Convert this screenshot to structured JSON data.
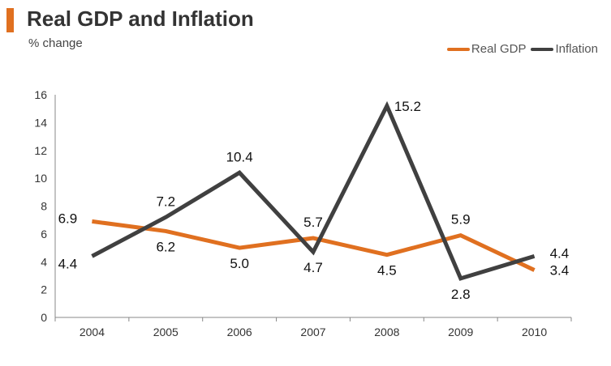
{
  "chart_data": {
    "type": "line",
    "title": "Real GDP and Inflation",
    "subtitle": "% change",
    "categories": [
      "2004",
      "2005",
      "2006",
      "2007",
      "2008",
      "2009",
      "2010"
    ],
    "ylim": [
      0,
      16
    ],
    "yticks": [
      0,
      2,
      4,
      6,
      8,
      10,
      12,
      14,
      16
    ],
    "xlabel": "",
    "ylabel": "",
    "grid": false,
    "legend_position": "top-right",
    "series": [
      {
        "name": "Real GDP",
        "color": "#E07020",
        "values": [
          6.9,
          6.2,
          5.0,
          5.7,
          4.5,
          5.9,
          3.4
        ],
        "labels": [
          "6.9",
          "6.2",
          "5.0",
          "5.7",
          "4.5",
          "5.9",
          "3.4"
        ]
      },
      {
        "name": "Inflation",
        "color": "#404040",
        "values": [
          4.4,
          7.2,
          10.4,
          4.7,
          15.2,
          2.8,
          4.4
        ],
        "labels": [
          "4.4",
          "7.2",
          "10.4",
          "4.7",
          "15.2",
          "2.8",
          "4.4"
        ]
      }
    ]
  },
  "colors": {
    "accent": "#E07020",
    "axis": "#888888"
  }
}
